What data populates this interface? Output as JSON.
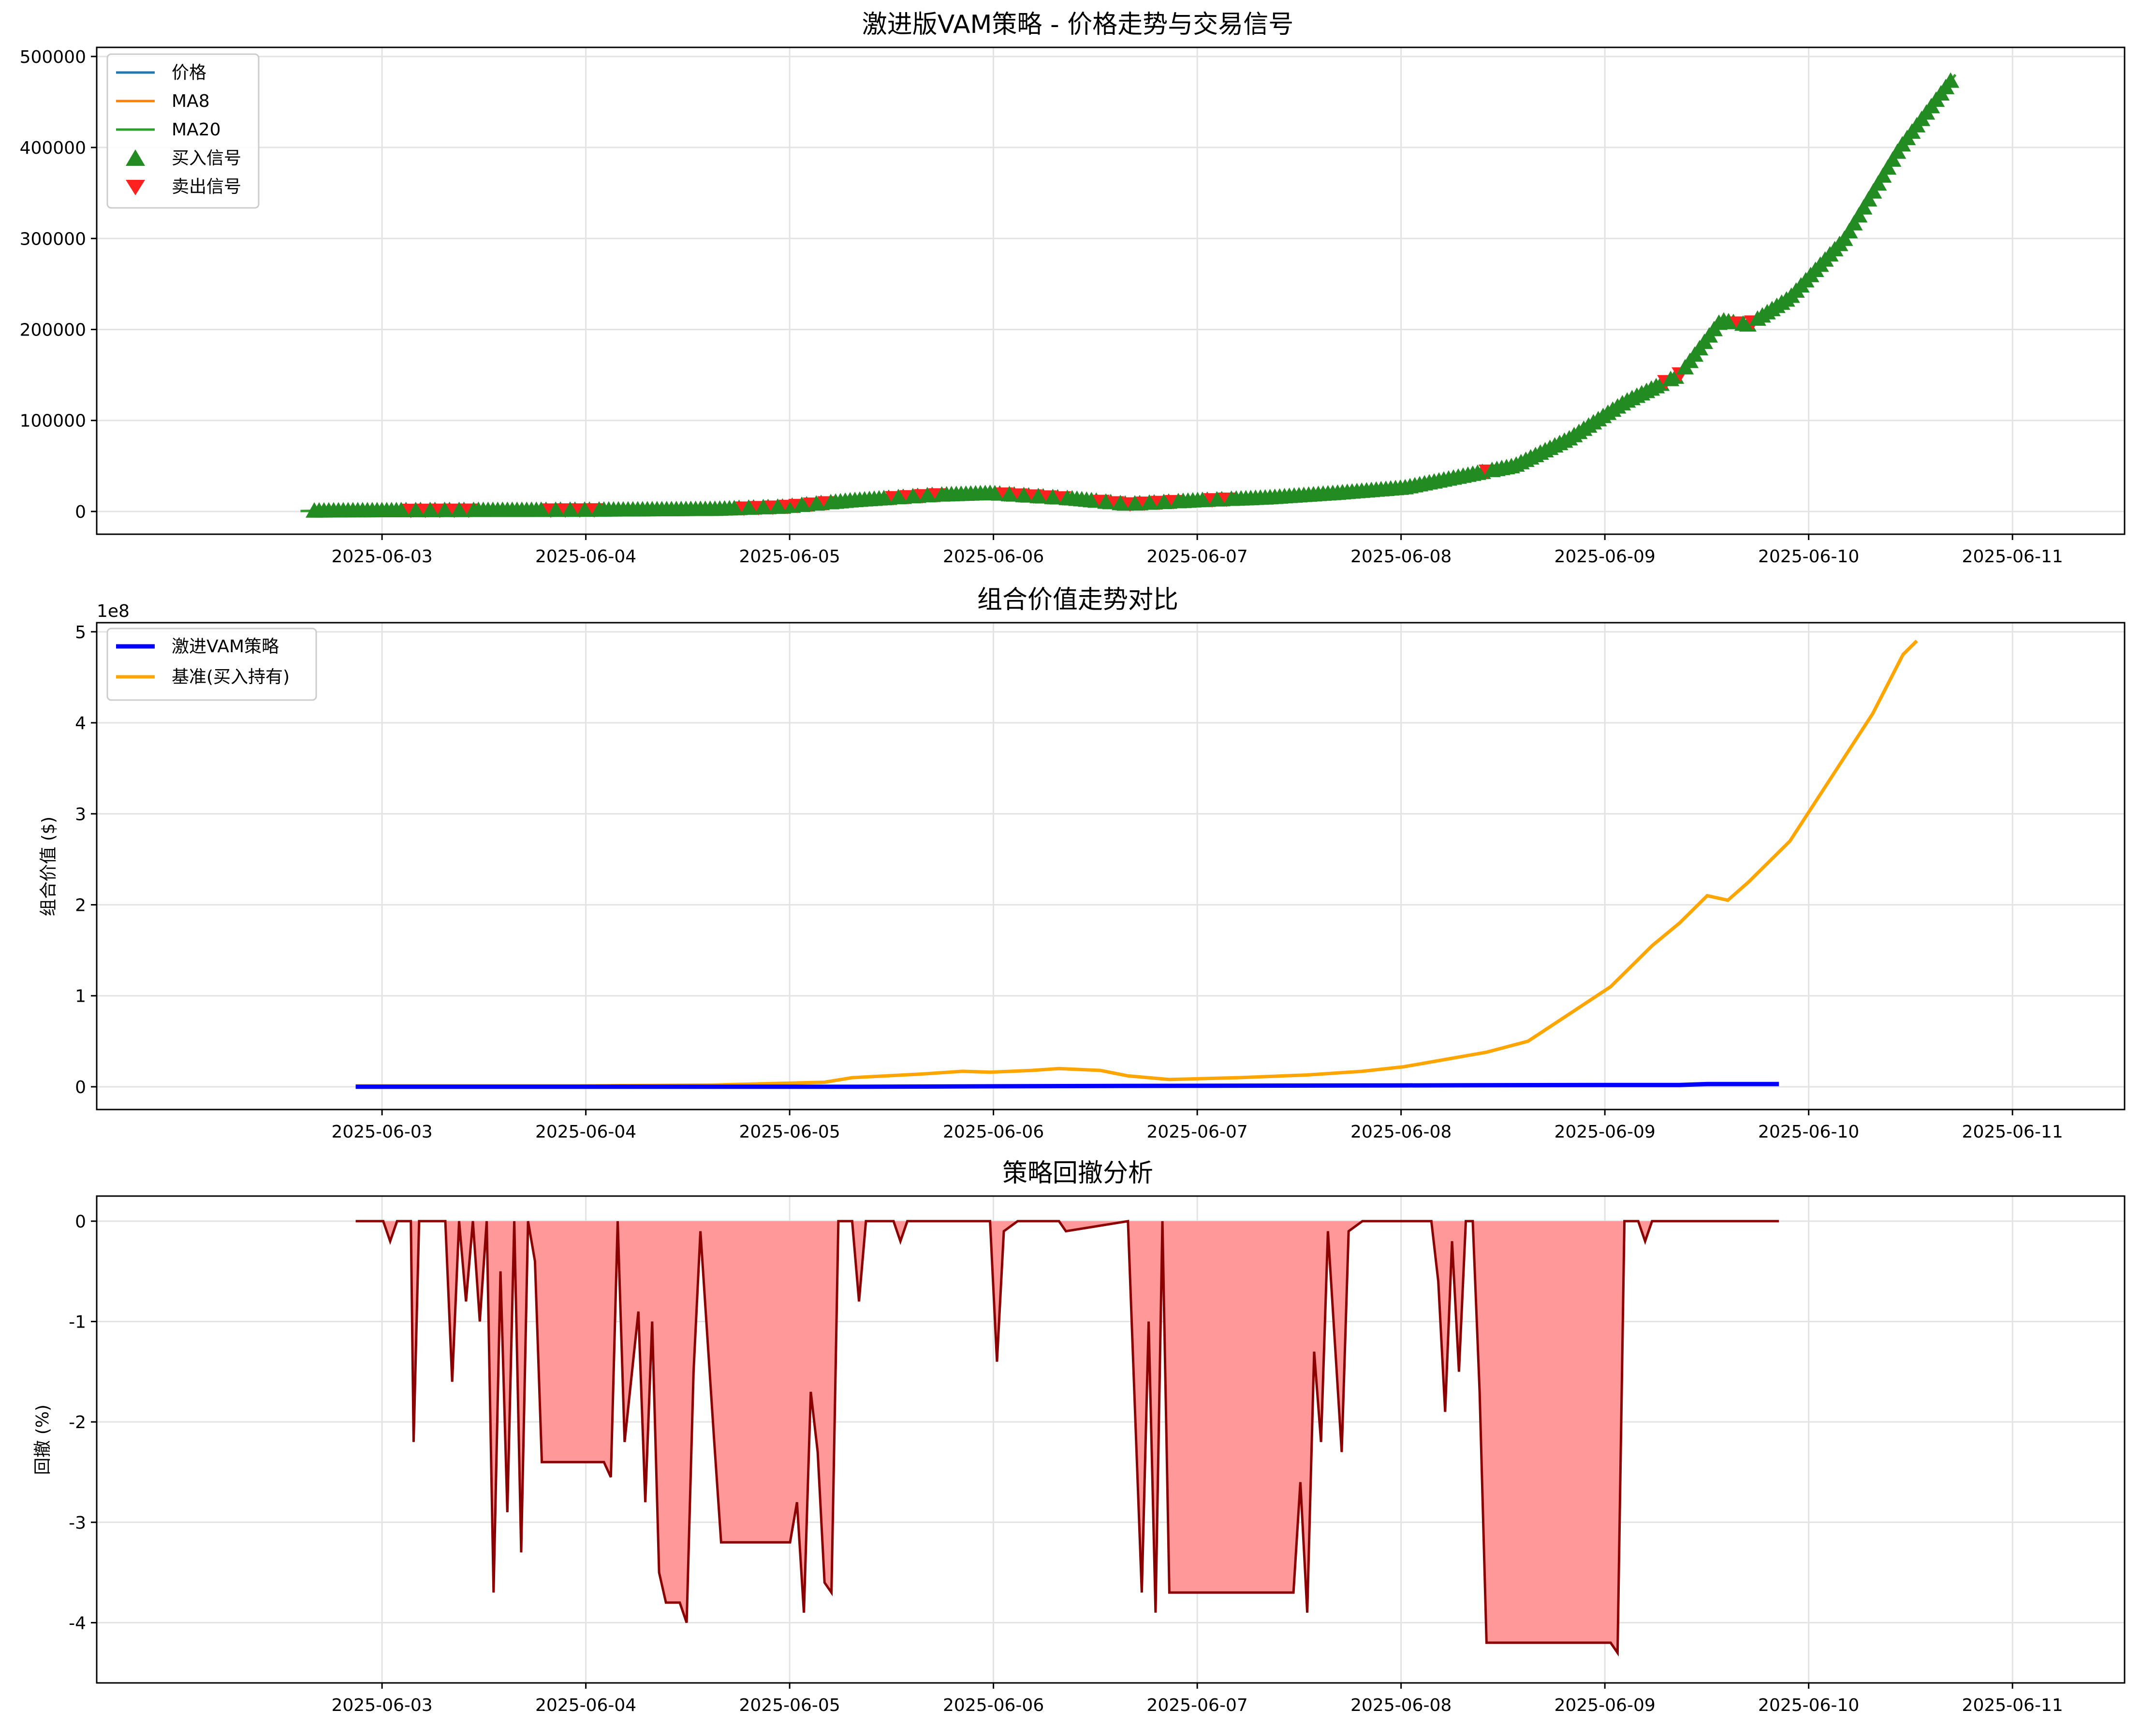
{
  "chart_data": [
    {
      "type": "line",
      "title": "激进版VAM策略 - 价格走势与交易信号",
      "xlabel": "",
      "ylabel": "",
      "x_ticks": [
        "2025-06-03",
        "2025-06-04",
        "2025-06-05",
        "2025-06-06",
        "2025-06-07",
        "2025-06-08",
        "2025-06-09",
        "2025-06-10",
        "2025-06-11"
      ],
      "xlim": [
        "2025-06-02T02:00",
        "2025-06-11T04:00"
      ],
      "y_ticks": [
        "0",
        "100000",
        "200000",
        "300000",
        "400000",
        "500000"
      ],
      "ylim": [
        -25000,
        510000
      ],
      "grid": true,
      "legend_position": "top-left",
      "legend": [
        "价格",
        "MA8",
        "MA20",
        "买入信号",
        "卖出信号"
      ],
      "series": [
        {
          "name": "价格",
          "color": "#1f77b4",
          "values": [
            [
              0.0,
              500
            ],
            [
              0.3,
              900
            ],
            [
              1.0,
              1200
            ],
            [
              2.0,
              1500
            ],
            [
              3.0,
              2500
            ],
            [
              3.5,
              5000
            ],
            [
              4.0,
              12000
            ],
            [
              4.3,
              15000
            ],
            [
              4.6,
              18000
            ],
            [
              5.0,
              20000
            ],
            [
              5.3,
              17000
            ],
            [
              5.6,
              14000
            ],
            [
              6.0,
              8000
            ],
            [
              6.5,
              12000
            ],
            [
              7.0,
              15000
            ],
            [
              7.5,
              20000
            ],
            [
              8.0,
              26000
            ],
            [
              8.4,
              38000
            ],
            [
              8.8,
              50000
            ],
            [
              9.2,
              80000
            ],
            [
              9.6,
              120000
            ],
            [
              10.0,
              150000
            ],
            [
              10.3,
              210000
            ],
            [
              10.5,
              205000
            ],
            [
              10.8,
              235000
            ],
            [
              11.2,
              300000
            ],
            [
              11.6,
              400000
            ],
            [
              12.0,
              480000
            ]
          ]
        },
        {
          "name": "MA8",
          "color": "#ff7f0e",
          "values": [
            [
              0.0,
              500
            ],
            [
              0.3,
              900
            ],
            [
              1.0,
              1200
            ],
            [
              2.0,
              1500
            ],
            [
              3.0,
              2500
            ],
            [
              3.5,
              5000
            ],
            [
              4.0,
              12000
            ],
            [
              4.3,
              15000
            ],
            [
              4.6,
              18000
            ],
            [
              5.0,
              20000
            ],
            [
              5.3,
              17000
            ],
            [
              5.6,
              14000
            ],
            [
              6.0,
              8000
            ],
            [
              6.5,
              12000
            ],
            [
              7.0,
              15000
            ],
            [
              7.5,
              20000
            ],
            [
              8.0,
              26000
            ],
            [
              8.4,
              38000
            ],
            [
              8.8,
              50000
            ],
            [
              9.2,
              80000
            ],
            [
              9.6,
              120000
            ],
            [
              10.0,
              150000
            ],
            [
              10.3,
              210000
            ],
            [
              10.5,
              205000
            ],
            [
              10.8,
              235000
            ],
            [
              11.2,
              300000
            ],
            [
              11.6,
              400000
            ],
            [
              12.0,
              480000
            ]
          ]
        },
        {
          "name": "MA20",
          "color": "#2ca02c",
          "values": [
            [
              0.0,
              500
            ],
            [
              0.3,
              900
            ],
            [
              1.0,
              1200
            ],
            [
              2.0,
              1500
            ],
            [
              3.0,
              2500
            ],
            [
              3.5,
              5000
            ],
            [
              4.0,
              12000
            ],
            [
              4.3,
              15000
            ],
            [
              4.6,
              18000
            ],
            [
              5.0,
              20000
            ],
            [
              5.3,
              17000
            ],
            [
              5.6,
              14000
            ],
            [
              6.0,
              8000
            ],
            [
              6.5,
              12000
            ],
            [
              7.0,
              15000
            ],
            [
              7.5,
              20000
            ],
            [
              8.0,
              26000
            ],
            [
              8.4,
              38000
            ],
            [
              8.8,
              50000
            ],
            [
              9.2,
              80000
            ],
            [
              9.6,
              120000
            ],
            [
              10.0,
              150000
            ],
            [
              10.3,
              210000
            ],
            [
              10.5,
              205000
            ],
            [
              10.8,
              235000
            ],
            [
              11.2,
              300000
            ],
            [
              11.6,
              400000
            ],
            [
              12.0,
              480000
            ]
          ]
        }
      ],
      "note_x_units": "x values are days after 2025-06-02 00:00"
    },
    {
      "type": "line",
      "title": "组合价值走势对比",
      "xlabel": "",
      "ylabel": "组合价值 ($)",
      "offset_label": "1e8",
      "x_ticks": [
        "2025-06-03",
        "2025-06-04",
        "2025-06-05",
        "2025-06-06",
        "2025-06-07",
        "2025-06-08",
        "2025-06-09",
        "2025-06-10",
        "2025-06-11"
      ],
      "y_ticks": [
        "0",
        "1",
        "2",
        "3",
        "4",
        "5"
      ],
      "ylim": [
        -0.25,
        5.1
      ],
      "grid": true,
      "legend_position": "top-left",
      "legend": [
        "激进VAM策略",
        "基准(买入持有)"
      ],
      "series": [
        {
          "name": "激进VAM策略",
          "color": "#0000ff",
          "values": [
            [
              0.4,
              0.0
            ],
            [
              4.0,
              0.0
            ],
            [
              6.0,
              0.01
            ],
            [
              8.0,
              0.015
            ],
            [
              9.5,
              0.02
            ],
            [
              10.0,
              0.02
            ],
            [
              10.2,
              0.03
            ],
            [
              10.5,
              0.03
            ],
            [
              10.72,
              0.03
            ]
          ]
        },
        {
          "name": "基准(买入持有)",
          "color": "#ffa500",
          "values": [
            [
              0.4,
              0.01
            ],
            [
              1.0,
              0.01
            ],
            [
              2.0,
              0.01
            ],
            [
              3.0,
              0.02
            ],
            [
              3.8,
              0.05
            ],
            [
              4.0,
              0.1
            ],
            [
              4.5,
              0.14
            ],
            [
              4.8,
              0.17
            ],
            [
              5.0,
              0.16
            ],
            [
              5.3,
              0.18
            ],
            [
              5.5,
              0.2
            ],
            [
              5.8,
              0.18
            ],
            [
              6.0,
              0.12
            ],
            [
              6.3,
              0.08
            ],
            [
              6.8,
              0.1
            ],
            [
              7.3,
              0.13
            ],
            [
              7.7,
              0.17
            ],
            [
              8.0,
              0.22
            ],
            [
              8.3,
              0.3
            ],
            [
              8.6,
              0.38
            ],
            [
              8.9,
              0.5
            ],
            [
              9.2,
              0.8
            ],
            [
              9.5,
              1.1
            ],
            [
              9.8,
              1.55
            ],
            [
              10.0,
              1.8
            ],
            [
              10.2,
              2.1
            ],
            [
              10.35,
              2.05
            ],
            [
              10.5,
              2.25
            ],
            [
              10.8,
              2.7
            ],
            [
              11.1,
              3.4
            ],
            [
              11.4,
              4.1
            ],
            [
              11.62,
              4.75
            ],
            [
              11.72,
              4.9
            ]
          ]
        }
      ]
    },
    {
      "type": "area",
      "title": "策略回撤分析",
      "xlabel": "",
      "ylabel": "回撤 (%)",
      "x_ticks": [
        "2025-06-03",
        "2025-06-04",
        "2025-06-05",
        "2025-06-06",
        "2025-06-07",
        "2025-06-08",
        "2025-06-09",
        "2025-06-10",
        "2025-06-11"
      ],
      "y_ticks": [
        "-4",
        "-3",
        "-2",
        "-1",
        "0"
      ],
      "ylim": [
        -4.6,
        0.25
      ],
      "grid": true,
      "series": [
        {
          "name": "回撤",
          "color": "#8b0000",
          "fill": "#ff9999",
          "values": [
            [
              0.4,
              0
            ],
            [
              0.6,
              0
            ],
            [
              0.65,
              -0.2
            ],
            [
              0.7,
              0
            ],
            [
              0.8,
              0
            ],
            [
              0.82,
              -2.2
            ],
            [
              0.86,
              0
            ],
            [
              1.05,
              0
            ],
            [
              1.1,
              -1.6
            ],
            [
              1.15,
              0
            ],
            [
              1.2,
              -0.8
            ],
            [
              1.25,
              0
            ],
            [
              1.3,
              -1.0
            ],
            [
              1.35,
              0
            ],
            [
              1.4,
              -3.7
            ],
            [
              1.45,
              -0.5
            ],
            [
              1.5,
              -2.9
            ],
            [
              1.55,
              0
            ],
            [
              1.6,
              -3.3
            ],
            [
              1.65,
              0
            ],
            [
              1.7,
              -0.4
            ],
            [
              1.75,
              -2.4
            ],
            [
              2.2,
              -2.4
            ],
            [
              2.25,
              -2.55
            ],
            [
              2.3,
              0
            ],
            [
              2.35,
              -2.2
            ],
            [
              2.45,
              -0.9
            ],
            [
              2.5,
              -2.8
            ],
            [
              2.55,
              -1.0
            ],
            [
              2.6,
              -3.5
            ],
            [
              2.65,
              -3.8
            ],
            [
              2.75,
              -3.8
            ],
            [
              2.8,
              -4.0
            ],
            [
              2.85,
              -1.5
            ],
            [
              2.9,
              -0.1
            ],
            [
              3.0,
              -2.2
            ],
            [
              3.05,
              -3.2
            ],
            [
              3.1,
              -3.2
            ],
            [
              3.55,
              -3.2
            ],
            [
              3.6,
              -2.8
            ],
            [
              3.65,
              -3.9
            ],
            [
              3.7,
              -1.7
            ],
            [
              3.75,
              -2.3
            ],
            [
              3.8,
              -3.6
            ],
            [
              3.85,
              -3.7
            ],
            [
              3.9,
              0
            ],
            [
              4.0,
              0
            ],
            [
              4.05,
              -0.8
            ],
            [
              4.1,
              0
            ],
            [
              4.3,
              0
            ],
            [
              4.35,
              -0.2
            ],
            [
              4.4,
              0
            ],
            [
              4.9,
              0
            ],
            [
              5.0,
              0
            ],
            [
              5.05,
              -1.4
            ],
            [
              5.1,
              -0.1
            ],
            [
              5.2,
              0
            ],
            [
              5.5,
              0
            ],
            [
              5.55,
              -0.1
            ],
            [
              6.0,
              0
            ],
            [
              6.1,
              -3.7
            ],
            [
              6.15,
              -1.0
            ],
            [
              6.2,
              -3.9
            ],
            [
              6.25,
              0
            ],
            [
              6.3,
              -3.7
            ],
            [
              6.4,
              -3.7
            ],
            [
              7.1,
              -3.7
            ],
            [
              7.2,
              -3.7
            ],
            [
              7.25,
              -2.6
            ],
            [
              7.3,
              -3.9
            ],
            [
              7.35,
              -1.3
            ],
            [
              7.4,
              -2.2
            ],
            [
              7.45,
              -0.1
            ],
            [
              7.55,
              -2.3
            ],
            [
              7.6,
              -0.1
            ],
            [
              7.7,
              0
            ],
            [
              8.2,
              0
            ],
            [
              8.25,
              -0.6
            ],
            [
              8.3,
              -1.9
            ],
            [
              8.35,
              -0.2
            ],
            [
              8.4,
              -1.5
            ],
            [
              8.45,
              0
            ],
            [
              8.5,
              0
            ],
            [
              8.55,
              -1.7
            ],
            [
              8.6,
              -4.2
            ],
            [
              9.5,
              -4.2
            ],
            [
              9.55,
              -4.3
            ],
            [
              9.6,
              0
            ],
            [
              9.7,
              0
            ],
            [
              9.75,
              -0.2
            ],
            [
              9.8,
              0
            ],
            [
              10.72,
              0
            ]
          ]
        }
      ]
    }
  ]
}
